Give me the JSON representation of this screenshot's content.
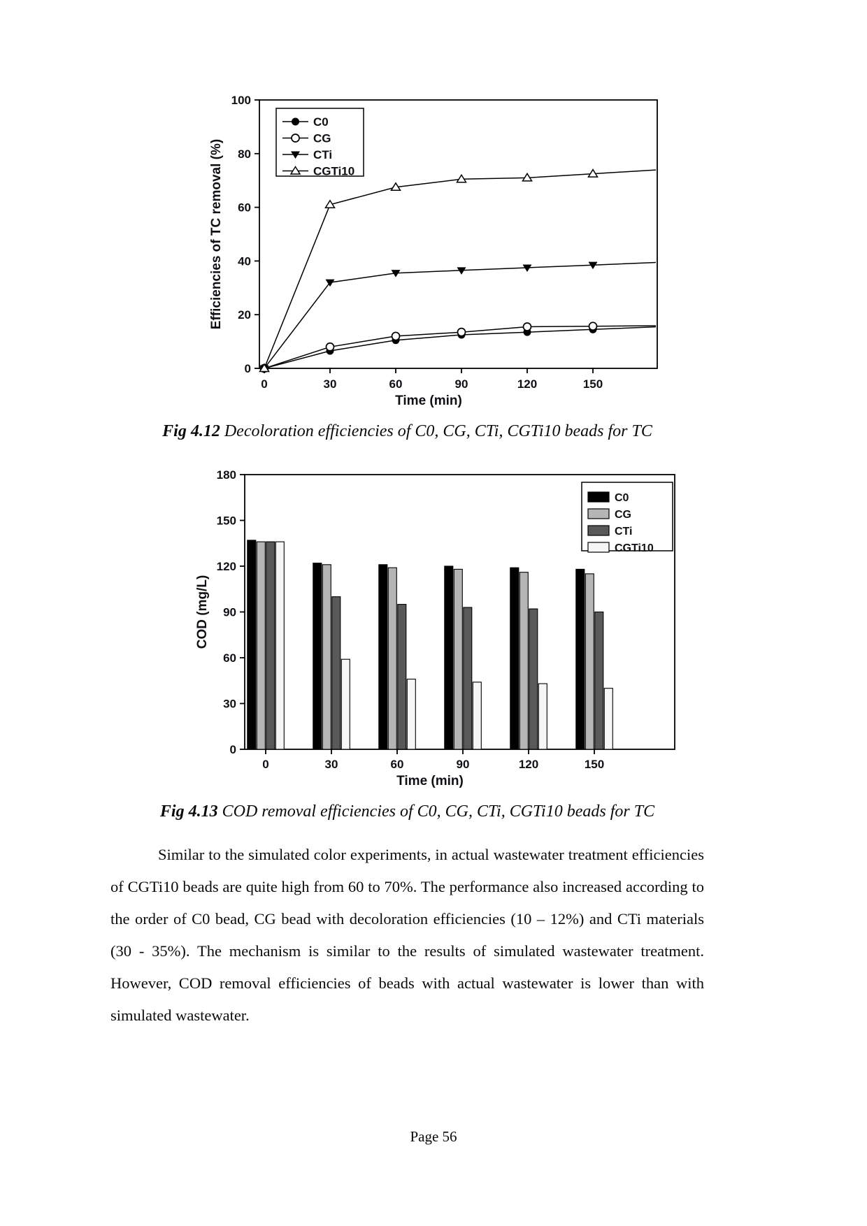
{
  "page": {
    "footer": "Page 56"
  },
  "figures": [
    {
      "caption_label": "Fig 4.12",
      "caption_text": " Decoloration efficiencies of C0, CG, CTi, CGTi10 beads for TC"
    },
    {
      "caption_label": "Fig 4.13",
      "caption_text": " COD removal efficiencies of C0, CG, CTi, CGTi10 beads for TC"
    }
  ],
  "paragraph": "Similar to the simulated color experiments, in actual wastewater treatment efficiencies of CGTi10 beads are quite high from 60 to 70%. The performance also increased according to the order of C0 bead, CG bead with decoloration efficiencies (10 – 12%) and CTi materials (30 - 35%). The mechanism is similar to the results of simulated wastewater treatment. However, COD removal efficiencies of beads with actual wastewater is lower than with simulated wastewater.",
  "chart_data": [
    {
      "type": "line",
      "title": "",
      "xlabel": "Time (min)",
      "ylabel": "Efficiencies of TC removal (%)",
      "x": [
        0,
        30,
        60,
        90,
        120,
        150
      ],
      "xticks": [
        0,
        30,
        60,
        90,
        120,
        150
      ],
      "yticks": [
        0,
        20,
        40,
        60,
        80,
        100
      ],
      "xlim": [
        0,
        177
      ],
      "ylim": [
        0,
        100
      ],
      "grid": false,
      "legend_position": "top-left",
      "series": [
        {
          "name": "C0",
          "marker": "filled-circle",
          "color": "#000000",
          "values": [
            0,
            6.5,
            10.5,
            12.5,
            13.5,
            14.5
          ]
        },
        {
          "name": "CG",
          "marker": "open-circle",
          "color": "#000000",
          "values": [
            0,
            8,
            12,
            13.5,
            15.5,
            15.7
          ]
        },
        {
          "name": "CTi",
          "marker": "filled-triangle-down",
          "color": "#000000",
          "values": [
            0,
            32,
            35.5,
            36.5,
            37.5,
            38.5
          ]
        },
        {
          "name": "CGTi10",
          "marker": "open-triangle-up",
          "color": "#000000",
          "values": [
            0,
            61,
            67.5,
            70.5,
            71,
            72.5
          ]
        }
      ]
    },
    {
      "type": "bar",
      "title": "",
      "xlabel": "Time (min)",
      "ylabel": "COD (mg/L)",
      "categories": [
        "0",
        "30",
        "60",
        "90",
        "120",
        "150"
      ],
      "yticks": [
        0,
        30,
        60,
        90,
        120,
        150,
        180
      ],
      "ylim": [
        0,
        180
      ],
      "grid": false,
      "legend_position": "top-right",
      "series": [
        {
          "name": "C0",
          "color": "#000000",
          "values": [
            137,
            122,
            121,
            120,
            119,
            118
          ]
        },
        {
          "name": "CG",
          "color": "#b5b5b5",
          "values": [
            136,
            121,
            119,
            118,
            116,
            115
          ]
        },
        {
          "name": "CTi",
          "color": "#595959",
          "values": [
            136,
            100,
            95,
            93,
            92,
            90
          ]
        },
        {
          "name": "CGTi10",
          "color": "#f6f6f6",
          "values": [
            136,
            59,
            46,
            44,
            43,
            40
          ]
        }
      ]
    }
  ]
}
